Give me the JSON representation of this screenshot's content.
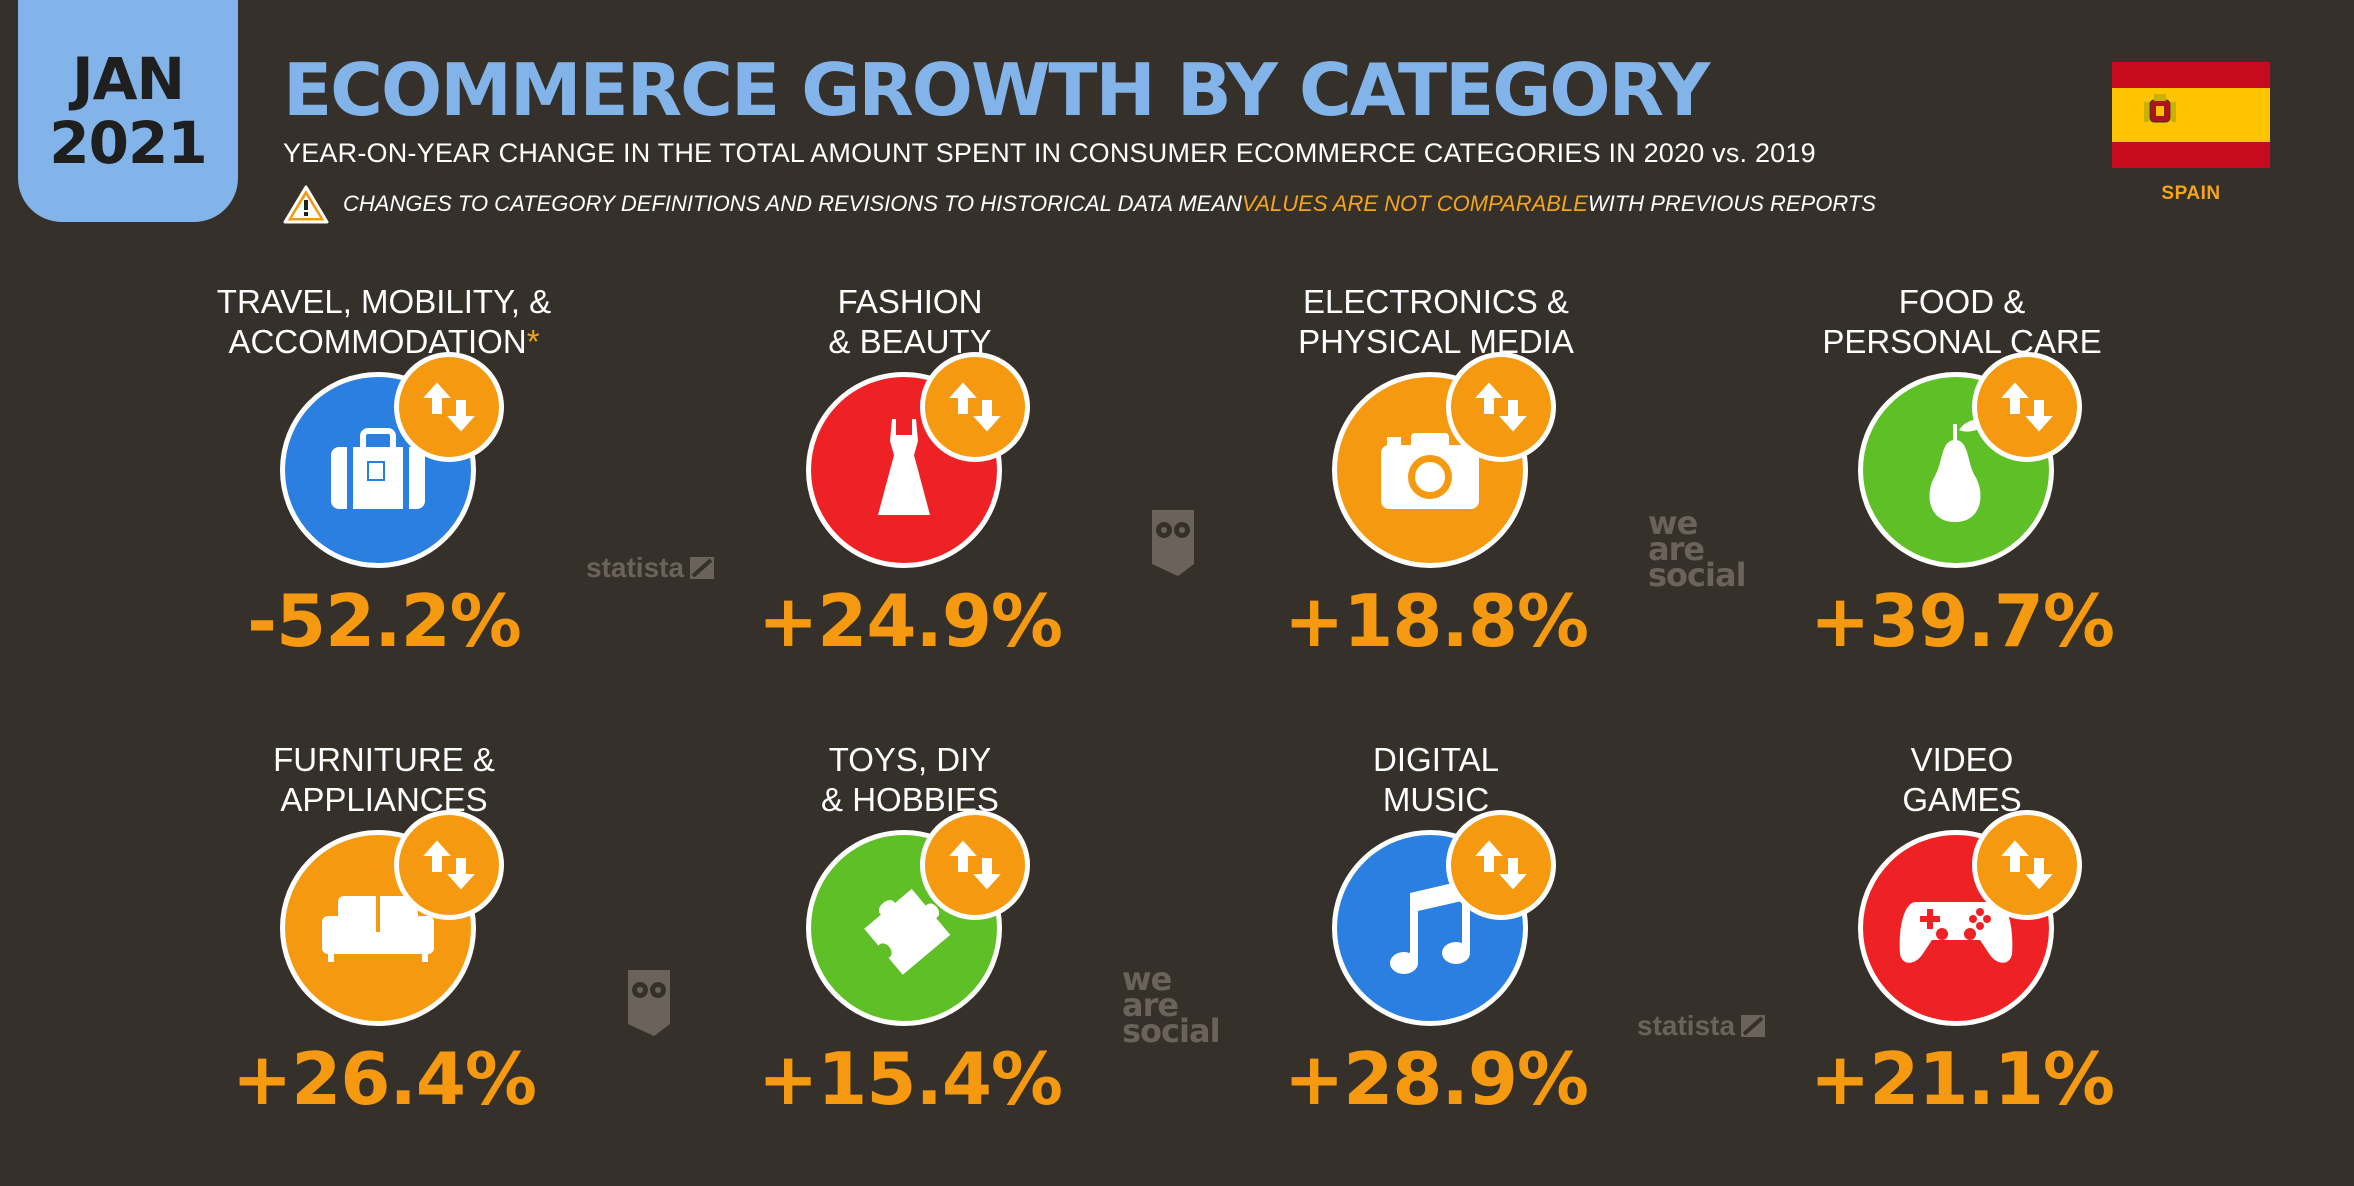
{
  "header": {
    "date_month": "JAN",
    "date_year": "2021",
    "title": "ECOMMERCE GROWTH BY CATEGORY",
    "subtitle": "YEAR-ON-YEAR CHANGE IN THE TOTAL AMOUNT SPENT IN CONSUMER ECOMMERCE CATEGORIES IN 2020 vs. 2019",
    "note_before": "CHANGES TO CATEGORY DEFINITIONS AND REVISIONS TO HISTORICAL DATA MEAN ",
    "note_highlight": "VALUES ARE NOT COMPARABLE",
    "note_after": " WITH PREVIOUS REPORTS",
    "country": "SPAIN"
  },
  "colors": {
    "background": "#36302b",
    "title_blue": "#82b4ea",
    "accent_orange": "#f59a10",
    "travel_blue": "#2a7fe0",
    "fashion_red": "#ee2224",
    "electronics_orange": "#f59a10",
    "food_green": "#5fbf26",
    "furniture_orange": "#f59a10",
    "toys_green": "#5fbf26",
    "music_blue": "#2a7fe0",
    "games_red": "#ee2224"
  },
  "categories": [
    {
      "line1": "TRAVEL, MOBILITY, &",
      "line2": "ACCOMMODATION",
      "asterisk": "*",
      "value": "-52.2%",
      "icon": "suitcase-icon"
    },
    {
      "line1": "FASHION",
      "line2": "& BEAUTY",
      "value": "+24.9%",
      "icon": "dress-icon"
    },
    {
      "line1": "ELECTRONICS &",
      "line2": "PHYSICAL MEDIA",
      "value": "+18.8%",
      "icon": "camera-icon"
    },
    {
      "line1": "FOOD &",
      "line2": "PERSONAL CARE",
      "value": "+39.7%",
      "icon": "pear-icon"
    },
    {
      "line1": "FURNITURE &",
      "line2": "APPLIANCES",
      "value": "+26.4%",
      "icon": "sofa-icon"
    },
    {
      "line1": "TOYS, DIY",
      "line2": "& HOBBIES",
      "value": "+15.4%",
      "icon": "puzzle-icon"
    },
    {
      "line1": "DIGITAL",
      "line2": "MUSIC",
      "value": "+28.9%",
      "icon": "music-note-icon"
    },
    {
      "line1": "VIDEO",
      "line2": "GAMES",
      "value": "+21.1%",
      "icon": "gamepad-icon"
    }
  ],
  "watermarks": {
    "statista": "statista",
    "was_1": "we",
    "was_2": "are",
    "was_3": "social"
  }
}
